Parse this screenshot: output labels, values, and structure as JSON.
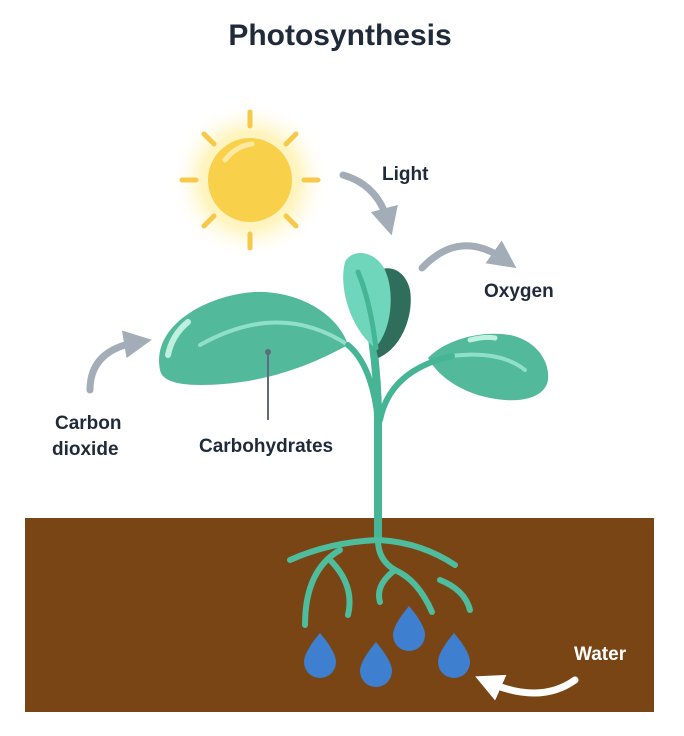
{
  "title": "Photosynthesis",
  "labels": {
    "light": "Light",
    "oxygen": "Oxygen",
    "carbon_dioxide_line1": "Carbon",
    "carbon_dioxide_line2": "dioxide",
    "carbohydrates": "Carbohydrates",
    "water": "Water"
  },
  "colors": {
    "title_text": "#1f2a3a",
    "label_text": "#1f2a3a",
    "water_label": "#ffffff",
    "sun": "#f8d04a",
    "sun_glow": "#fff2b0",
    "sun_rays": "#f6c94a",
    "arrows_gray": "#a3adb8",
    "arrow_white": "#ffffff",
    "leaf_main": "#52b99a",
    "leaf_light": "#6fd6bb",
    "leaf_dark": "#2e6e5a",
    "leaf_vein": "#8fe0c6",
    "stem": "#45b596",
    "roots": "#4dbd9d",
    "soil": "#7a4515",
    "water_drops": "#3f7fcf",
    "pointer_line": "#5f6b78"
  },
  "icons": {
    "sun": "sun-icon",
    "plant": "plant-icon",
    "water_drop": "water-drop-icon",
    "arrow": "curved-arrow-icon"
  }
}
